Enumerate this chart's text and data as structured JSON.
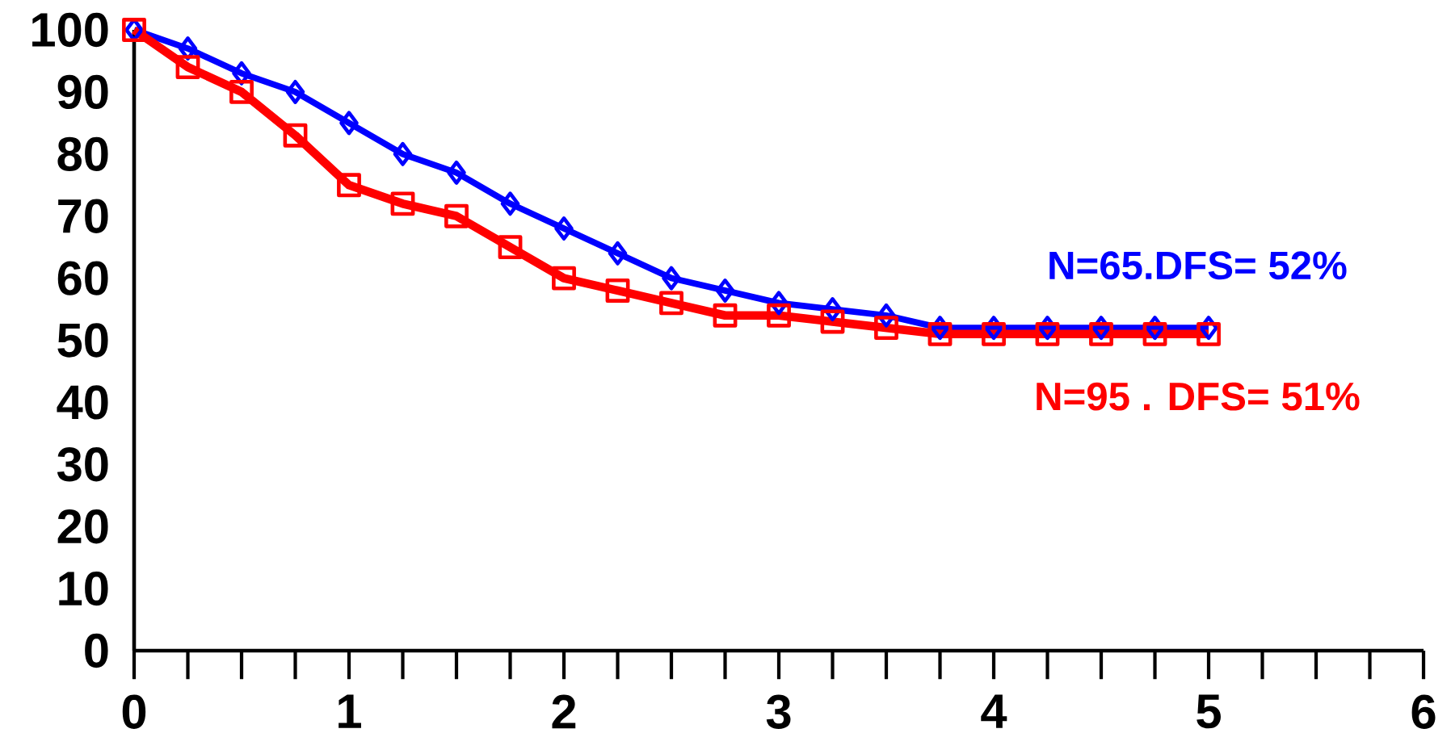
{
  "chart_data": {
    "type": "line",
    "x": [
      0,
      0.25,
      0.5,
      0.75,
      1,
      1.25,
      1.5,
      1.75,
      2,
      2.25,
      2.5,
      2.75,
      3,
      3.25,
      3.5,
      3.75,
      4,
      4.25,
      4.5,
      4.75,
      5
    ],
    "series": [
      {
        "name": "N=65.DFS= 52%",
        "color": "#0000ff",
        "marker": "diamond",
        "values": [
          100,
          97,
          93,
          90,
          85,
          80,
          77,
          72,
          68,
          64,
          60,
          58,
          56,
          55,
          54,
          52,
          52,
          52,
          52,
          52,
          52
        ]
      },
      {
        "name": "N=95 . DFS= 51%",
        "color": "#ff0000",
        "marker": "square",
        "values": [
          100,
          94,
          90,
          83,
          75,
          72,
          70,
          65,
          60,
          58,
          56,
          54,
          54,
          53,
          52,
          51,
          51,
          51,
          51,
          51,
          51
        ]
      }
    ],
    "xlim": [
      0,
      6
    ],
    "xticks": [
      0,
      1,
      2,
      3,
      4,
      5,
      6
    ],
    "ylim": [
      0,
      100
    ],
    "yticks": [
      0,
      10,
      20,
      30,
      40,
      50,
      60,
      70,
      80,
      90,
      100
    ],
    "grid": false,
    "line_style": "solid"
  }
}
